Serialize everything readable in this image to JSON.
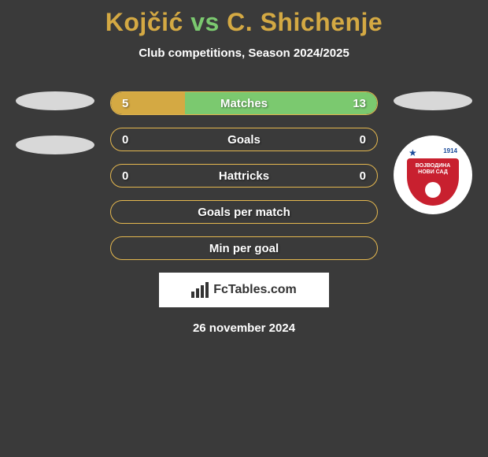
{
  "header": {
    "player1": "Kojčić",
    "vs": "vs",
    "player2": "C. Shichenje",
    "player1_color": "#d4a943",
    "vs_color": "#7bc96f",
    "player2_color": "#d4a943",
    "subtitle": "Club competitions, Season 2024/2025"
  },
  "stats": [
    {
      "label": "Matches",
      "left_val": "5",
      "right_val": "13",
      "left_pct": 27.8,
      "right_pct": 72.2,
      "left_fill": "#d4a943",
      "right_fill": "#7bc96f",
      "border": "#e5b84f"
    },
    {
      "label": "Goals",
      "left_val": "0",
      "right_val": "0",
      "left_pct": 0,
      "right_pct": 0,
      "left_fill": "#d4a943",
      "right_fill": "#7bc96f",
      "border": "#e5b84f"
    },
    {
      "label": "Hattricks",
      "left_val": "0",
      "right_val": "0",
      "left_pct": 0,
      "right_pct": 0,
      "left_fill": "#d4a943",
      "right_fill": "#7bc96f",
      "border": "#e5b84f"
    },
    {
      "label": "Goals per match",
      "left_val": "",
      "right_val": "",
      "left_pct": 0,
      "right_pct": 0,
      "left_fill": "#d4a943",
      "right_fill": "#7bc96f",
      "border": "#e5b84f"
    },
    {
      "label": "Min per goal",
      "left_val": "",
      "right_val": "",
      "left_pct": 0,
      "right_pct": 0,
      "left_fill": "#d4a943",
      "right_fill": "#7bc96f",
      "border": "#e5b84f"
    }
  ],
  "right_badge": {
    "year": "1914",
    "line1": "ВОЈВОДИНА",
    "line2": "НОВИ САД",
    "shield_color": "#c8202f",
    "star_color": "#1a4a9a"
  },
  "branding": {
    "text": "FcTables.com"
  },
  "date": "26 november 2024",
  "colors": {
    "background": "#3a3a3a",
    "text": "#ffffff"
  }
}
